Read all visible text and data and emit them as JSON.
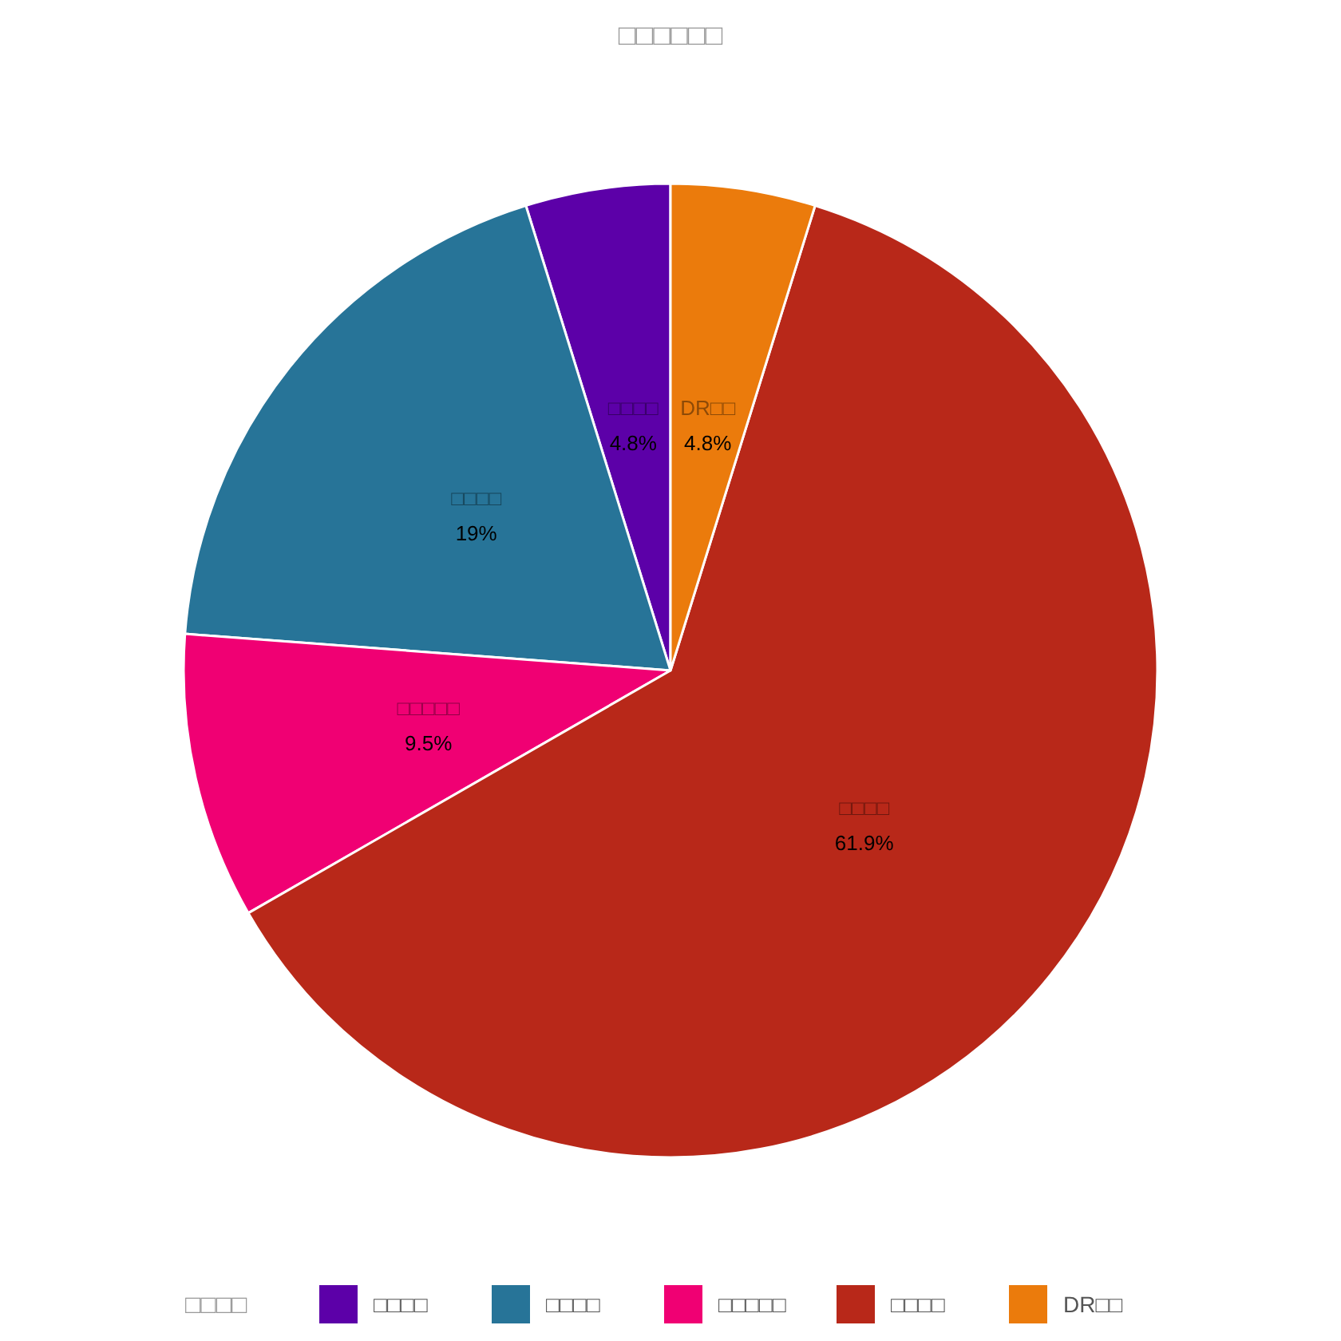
{
  "chart_data": {
    "type": "pie",
    "title": "□□□□□□",
    "legend_title": "□□□□",
    "categories": [
      "□□□□",
      "□□□□",
      "□□□□□",
      "□□□□",
      "DR□□"
    ],
    "values": [
      4.8,
      19,
      9.5,
      61.9,
      4.8
    ],
    "value_labels": [
      "4.8%",
      "19%",
      "9.5%",
      "61.9%",
      "4.8%"
    ],
    "colors": [
      "#5c00a8",
      "#277498",
      "#f00073",
      "#b82819",
      "#eb7b0c"
    ],
    "legend": "bottom"
  }
}
